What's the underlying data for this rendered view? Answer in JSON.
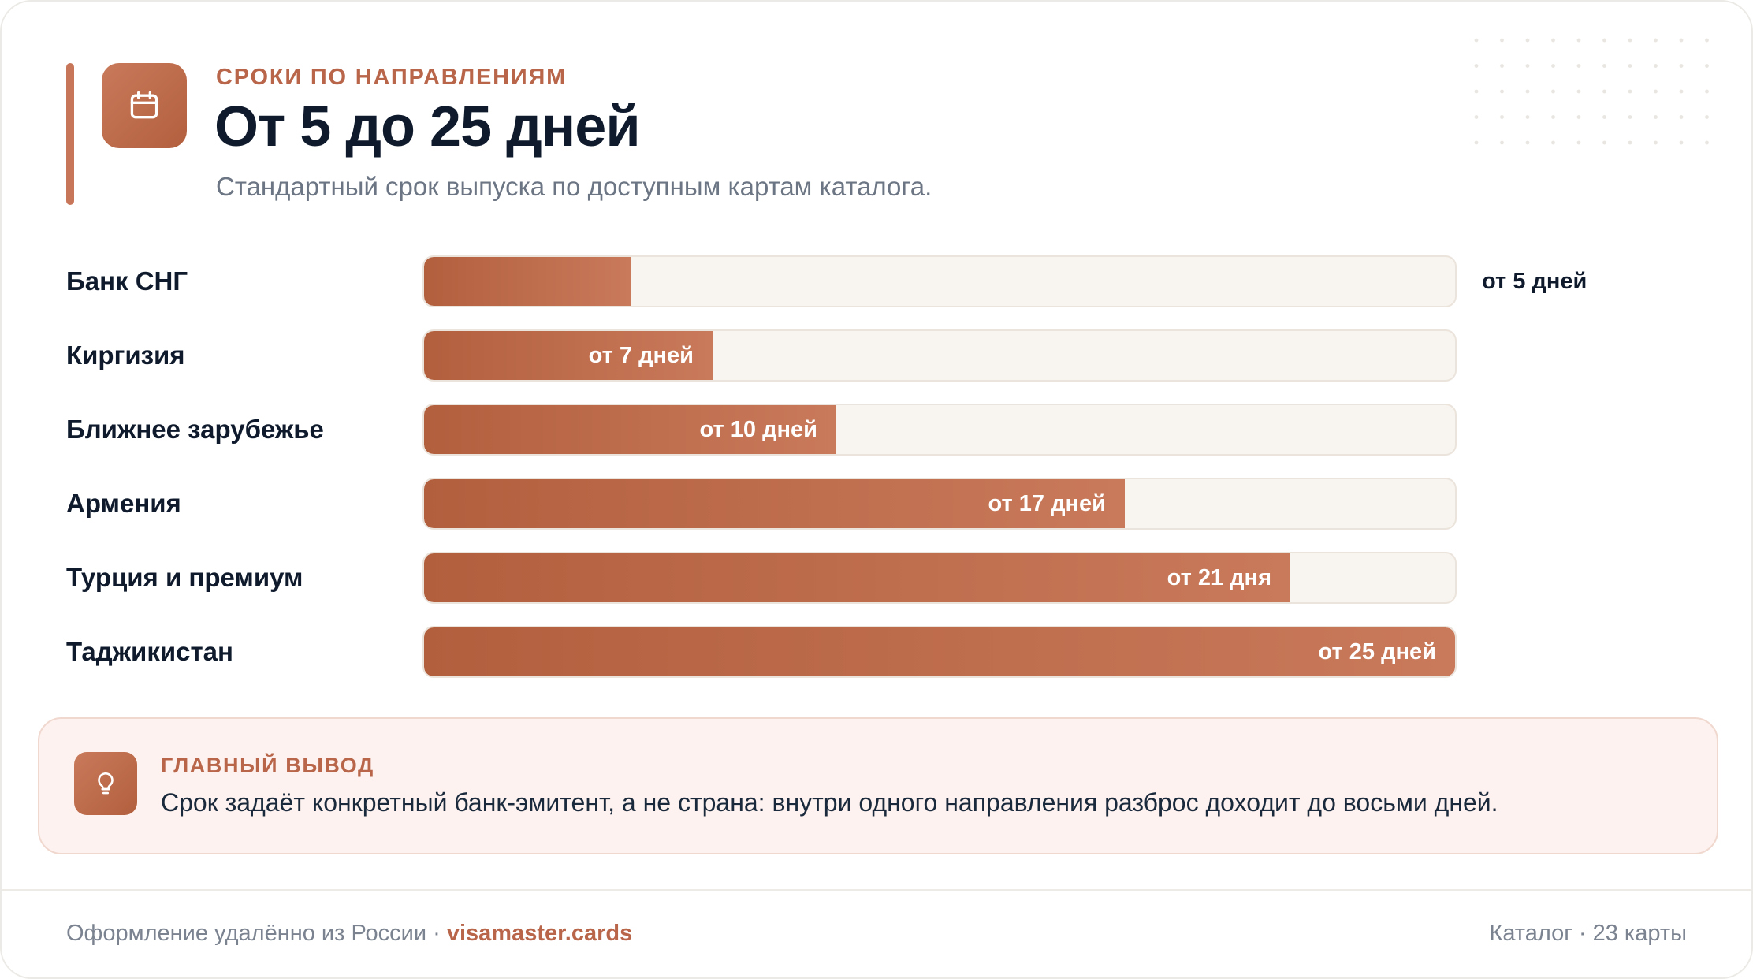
{
  "header": {
    "eyebrow": "СРОКИ ПО НАПРАВЛЕНИЯМ",
    "title": "От 5 до 25 дней",
    "subtitle": "Стандартный срок выпуска по доступным картам каталога.",
    "icon": "calendar-icon"
  },
  "chart_data": {
    "type": "bar",
    "orientation": "horizontal",
    "categories": [
      "Банк СНГ",
      "Киргизия",
      "Ближнее зарубежье",
      "Армения",
      "Турция и премиум",
      "Таджикистан"
    ],
    "values": [
      5,
      7,
      10,
      17,
      21,
      25
    ],
    "value_labels": [
      "от 5 дней",
      "от 7 дней",
      "от 10 дней",
      "от 17 дней",
      "от 21 дня",
      "от 25 дней"
    ],
    "xlim": [
      0,
      25
    ],
    "unit": "дней",
    "grid": false,
    "colors": {
      "fill_start": "#b25f3e",
      "fill_end": "#c97a5a",
      "track": "#f8f4ef"
    }
  },
  "conclusion": {
    "icon": "lightbulb-icon",
    "title": "ГЛАВНЫЙ ВЫВОД",
    "text": "Срок задаёт конкретный банк-эмитент, а не страна: внутри одного направления разброс доходит до восьми дней."
  },
  "footer": {
    "left_text": "Оформление удалённо из России · ",
    "brand": "visamaster.cards",
    "right_text": "Каталог · 23 карты"
  },
  "colors": {
    "accent": "#b8654a",
    "ink": "#0f1b2d",
    "muted": "#6b7583"
  }
}
